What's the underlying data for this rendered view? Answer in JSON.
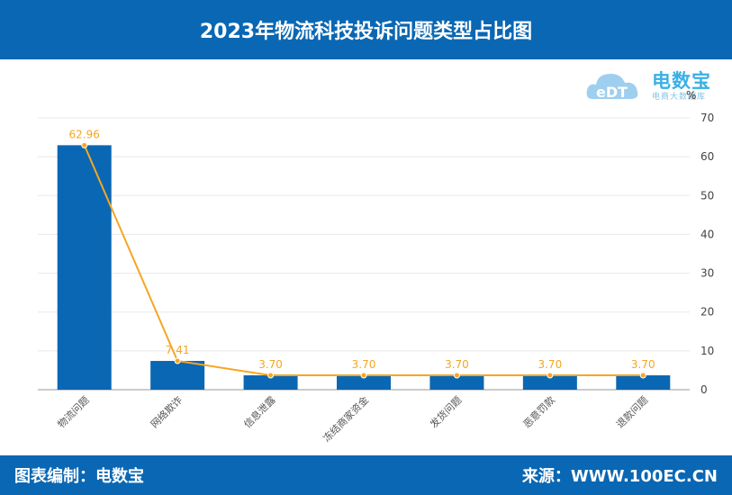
{
  "header": {
    "title": "2023年物流科技投诉问题类型占比图"
  },
  "footer": {
    "left": "图表编制：电数宝",
    "right": "来源：WWW.100EC.CN"
  },
  "logo": {
    "title": "电数宝",
    "subtitle": "电商大数据库",
    "unit": "%"
  },
  "colors": {
    "header": "#0a67b3",
    "bar": "#0a67b3",
    "line": "#f5a623"
  },
  "chart_data": {
    "type": "bar",
    "categories": [
      "物流问题",
      "网络欺诈",
      "信息泄露",
      "冻结商家资金",
      "发货问题",
      "恶意罚款",
      "退款问题"
    ],
    "values": [
      62.96,
      7.41,
      3.7,
      3.7,
      3.7,
      3.7,
      3.7
    ],
    "value_labels": [
      "62.96",
      "7.41",
      "3.70",
      "3.70",
      "3.70",
      "3.70",
      "3.70"
    ],
    "line_overlay": true,
    "yticks": [
      "70",
      "60",
      "50",
      "40",
      "30",
      "20",
      "10",
      "0"
    ],
    "ylim": [
      0,
      70
    ],
    "y_axis_side": "right",
    "grid": true
  }
}
